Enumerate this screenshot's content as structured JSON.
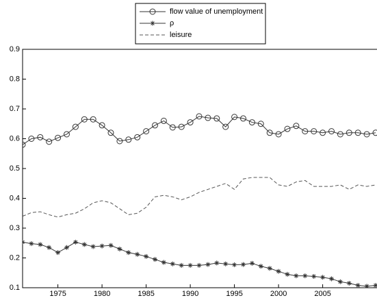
{
  "chart_data": {
    "type": "line",
    "x": [
      1971,
      1972,
      1973,
      1974,
      1975,
      1976,
      1977,
      1978,
      1979,
      1980,
      1981,
      1982,
      1983,
      1984,
      1985,
      1986,
      1987,
      1988,
      1989,
      1990,
      1991,
      1992,
      1993,
      1994,
      1995,
      1996,
      1997,
      1998,
      1999,
      2000,
      2001,
      2002,
      2003,
      2004,
      2005,
      2006,
      2007,
      2008,
      2009,
      2010,
      2011
    ],
    "series": [
      {
        "name": "flow value of unemployment",
        "color": "#333333",
        "marker": "circle",
        "dash": "solid",
        "values": [
          0.58,
          0.6,
          0.605,
          0.59,
          0.603,
          0.615,
          0.64,
          0.665,
          0.665,
          0.645,
          0.62,
          0.592,
          0.597,
          0.605,
          0.625,
          0.645,
          0.66,
          0.638,
          0.64,
          0.655,
          0.675,
          0.67,
          0.668,
          0.64,
          0.673,
          0.668,
          0.655,
          0.65,
          0.62,
          0.615,
          0.633,
          0.643,
          0.625,
          0.625,
          0.62,
          0.625,
          0.615,
          0.62,
          0.62,
          0.615,
          0.62
        ]
      },
      {
        "name": "ρ",
        "color": "#333333",
        "marker": "asterisk",
        "dash": "solid",
        "values": [
          0.253,
          0.248,
          0.245,
          0.235,
          0.218,
          0.235,
          0.253,
          0.245,
          0.238,
          0.24,
          0.242,
          0.23,
          0.218,
          0.212,
          0.205,
          0.195,
          0.185,
          0.18,
          0.175,
          0.175,
          0.175,
          0.178,
          0.183,
          0.18,
          0.177,
          0.178,
          0.182,
          0.172,
          0.165,
          0.155,
          0.145,
          0.14,
          0.14,
          0.138,
          0.135,
          0.13,
          0.12,
          0.115,
          0.108,
          0.105,
          0.108
        ]
      },
      {
        "name": "leisure",
        "color": "#555555",
        "marker": "none",
        "dash": "dashed",
        "values": [
          0.34,
          0.352,
          0.355,
          0.345,
          0.337,
          0.345,
          0.35,
          0.365,
          0.385,
          0.392,
          0.385,
          0.365,
          0.345,
          0.35,
          0.37,
          0.405,
          0.41,
          0.405,
          0.395,
          0.405,
          0.42,
          0.43,
          0.44,
          0.45,
          0.43,
          0.465,
          0.47,
          0.47,
          0.47,
          0.445,
          0.44,
          0.455,
          0.46,
          0.44,
          0.44,
          0.44,
          0.445,
          0.43,
          0.445,
          0.44,
          0.445
        ]
      }
    ],
    "xlim": [
      1971,
      2011
    ],
    "xticks": [
      1975,
      1980,
      1985,
      1990,
      1995,
      2000,
      2005
    ],
    "ylim": [
      0.1,
      0.9
    ],
    "yticks": [
      0.1,
      0.2,
      0.3,
      0.4,
      0.5,
      0.6,
      0.7,
      0.8,
      0.9
    ],
    "grid": false,
    "legend": "top"
  }
}
